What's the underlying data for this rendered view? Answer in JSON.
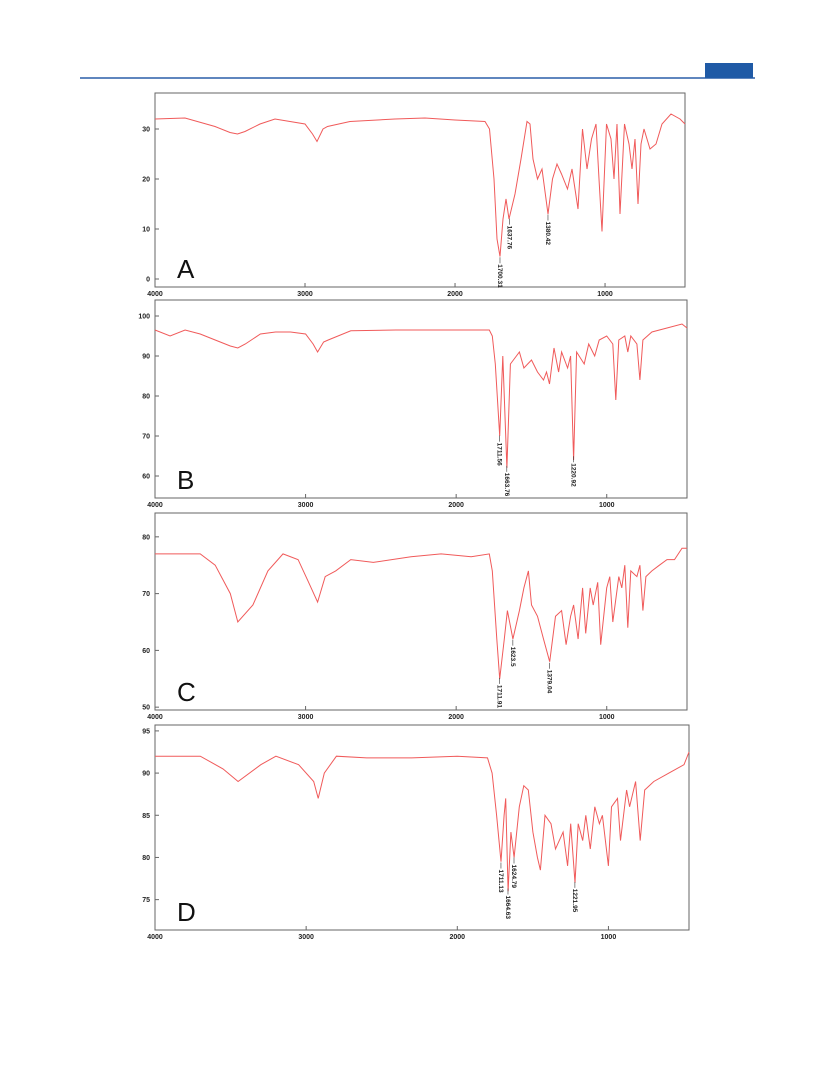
{
  "chart_data": [
    {
      "type": "line",
      "color": "#f05a5a",
      "panel_label": "A",
      "x": [
        4000,
        3800,
        3600,
        3500,
        3450,
        3400,
        3300,
        3200,
        3100,
        3000,
        2950,
        2920,
        2880,
        2850,
        2700,
        2400,
        2200,
        2000,
        1800,
        1770,
        1740,
        1720,
        1700,
        1680,
        1660,
        1640,
        1600,
        1560,
        1520,
        1500,
        1480,
        1450,
        1420,
        1380,
        1350,
        1320,
        1290,
        1250,
        1220,
        1180,
        1150,
        1120,
        1090,
        1060,
        1040,
        1020,
        990,
        960,
        940,
        920,
        900,
        870,
        840,
        820,
        800,
        780,
        760,
        740,
        700,
        660,
        620,
        560,
        500,
        467
      ],
      "values": [
        32,
        32.2,
        30.5,
        29.3,
        29,
        29.5,
        31,
        32,
        31.5,
        31,
        29,
        27.5,
        30,
        30.5,
        31.5,
        32,
        32.2,
        31.8,
        31.5,
        30,
        20,
        8,
        4.5,
        12,
        16,
        12,
        17,
        24,
        31.5,
        31,
        24,
        20,
        22,
        13,
        20,
        23,
        21,
        18,
        22,
        14,
        30,
        22,
        28,
        31,
        20,
        9.5,
        31,
        28,
        20,
        31,
        13,
        31,
        27,
        22,
        28,
        15,
        27,
        30,
        26,
        27,
        31,
        33,
        32,
        31
      ],
      "xlim": [
        4000,
        467
      ],
      "xticks": [
        4000,
        3000,
        2000,
        1000
      ],
      "ylim": [
        -1.6,
        37.2
      ],
      "yticks": [
        0,
        10,
        20,
        30
      ],
      "annotations": [
        {
          "value": 1700.31,
          "label": "1700.31"
        },
        {
          "value": 1637.76,
          "label": "1637.76"
        },
        {
          "value": 1380.42,
          "label": "1380.42"
        }
      ]
    },
    {
      "type": "line",
      "color": "#f05a5a",
      "panel_label": "B",
      "x": [
        4000,
        3900,
        3800,
        3700,
        3600,
        3500,
        3450,
        3400,
        3300,
        3200,
        3100,
        3000,
        2950,
        2920,
        2880,
        2850,
        2700,
        2400,
        2000,
        1780,
        1760,
        1740,
        1711,
        1690,
        1663,
        1640,
        1600,
        1580,
        1550,
        1500,
        1460,
        1420,
        1400,
        1380,
        1350,
        1320,
        1300,
        1260,
        1240,
        1220,
        1200,
        1150,
        1120,
        1080,
        1050,
        1000,
        960,
        940,
        920,
        880,
        860,
        840,
        800,
        780,
        760,
        700,
        600,
        500,
        467
      ],
      "values": [
        96.5,
        95,
        96.5,
        95.5,
        94,
        92.5,
        92,
        93,
        95.5,
        96,
        96,
        95.5,
        93,
        91,
        93.5,
        94,
        96.3,
        96.5,
        96.5,
        96.5,
        95,
        88,
        70,
        90,
        62,
        88,
        90,
        91,
        87,
        89,
        86,
        84,
        86,
        83,
        92,
        86,
        91,
        87,
        90,
        64,
        91,
        88,
        93,
        90,
        94,
        95,
        93,
        79,
        94,
        95,
        91,
        95,
        93,
        84,
        94,
        96,
        97,
        98,
        97
      ],
      "xlim": [
        4000,
        467
      ],
      "xticks": [
        4000,
        3000,
        2000,
        1000
      ],
      "ylim": [
        54.5,
        104
      ],
      "yticks": [
        60,
        70,
        80,
        90,
        100
      ],
      "annotations": [
        {
          "value": 1711.56,
          "label": "1711.56"
        },
        {
          "value": 1663.76,
          "label": "1663.76"
        },
        {
          "value": 1220.92,
          "label": "1220.92"
        }
      ]
    },
    {
      "type": "line",
      "color": "#f05a5a",
      "panel_label": "C",
      "x": [
        4000,
        3700,
        3600,
        3500,
        3450,
        3350,
        3250,
        3150,
        3050,
        2980,
        2920,
        2870,
        2800,
        2700,
        2550,
        2300,
        2100,
        1900,
        1780,
        1760,
        1730,
        1711,
        1680,
        1660,
        1623,
        1580,
        1550,
        1520,
        1500,
        1460,
        1420,
        1379,
        1340,
        1300,
        1270,
        1240,
        1220,
        1190,
        1160,
        1140,
        1110,
        1090,
        1060,
        1040,
        1000,
        980,
        960,
        920,
        900,
        880,
        860,
        840,
        800,
        780,
        760,
        740,
        700,
        650,
        600,
        550,
        500,
        467
      ],
      "values": [
        77,
        77,
        75,
        70,
        65,
        68,
        74,
        77,
        76,
        72,
        68.5,
        73,
        74,
        76,
        75.5,
        76.5,
        77,
        76.5,
        77,
        74,
        62,
        55,
        62,
        67,
        62,
        67,
        71,
        74,
        68,
        66,
        62,
        58,
        66,
        67,
        61,
        66,
        68,
        62,
        71,
        63,
        71,
        68,
        72,
        61,
        71,
        73,
        65,
        73,
        71,
        75,
        64,
        74,
        73,
        75,
        67,
        73,
        74,
        75,
        76,
        76,
        78,
        78
      ],
      "xlim": [
        4000,
        467
      ],
      "xticks": [
        4000,
        3000,
        2000,
        1000
      ],
      "ylim": [
        49.5,
        84.2
      ],
      "yticks": [
        50,
        60,
        70,
        80
      ],
      "annotations": [
        {
          "value": 1711.91,
          "label": "1711.91"
        },
        {
          "value": 1623.5,
          "label": "1623.5"
        },
        {
          "value": 1379.04,
          "label": "1379.04"
        }
      ]
    },
    {
      "type": "line",
      "color": "#f05a5a",
      "panel_label": "D",
      "x": [
        4000,
        3700,
        3550,
        3450,
        3300,
        3200,
        3050,
        2950,
        2920,
        2880,
        2800,
        2600,
        2300,
        2000,
        1800,
        1770,
        1740,
        1711,
        1690,
        1680,
        1664,
        1645,
        1624,
        1590,
        1560,
        1530,
        1500,
        1470,
        1450,
        1420,
        1380,
        1350,
        1300,
        1270,
        1250,
        1221,
        1200,
        1170,
        1150,
        1120,
        1090,
        1060,
        1040,
        1000,
        980,
        940,
        920,
        880,
        860,
        820,
        790,
        760,
        700,
        600,
        500,
        467
      ],
      "values": [
        92,
        92,
        90.5,
        89,
        91,
        92,
        91,
        89,
        87,
        90,
        92,
        91.8,
        91.8,
        92,
        91.8,
        90,
        85,
        79.5,
        85,
        87,
        76,
        83,
        80,
        86,
        88.5,
        88,
        83,
        80,
        78.5,
        85,
        84,
        81,
        83,
        79,
        84,
        77,
        84,
        82,
        85,
        81,
        86,
        84,
        85,
        79,
        86,
        87,
        82,
        88,
        86,
        89,
        82,
        88,
        89,
        90,
        91,
        92.5
      ],
      "xlim": [
        4000,
        467
      ],
      "xticks": [
        4000,
        3000,
        2000,
        1000
      ],
      "ylim": [
        71.4,
        95.7
      ],
      "yticks": [
        75,
        80,
        85,
        90,
        95
      ],
      "annotations": [
        {
          "value": 1711.13,
          "label": "1711.13"
        },
        {
          "value": 1664.63,
          "label": "1664.63"
        },
        {
          "value": 1624.79,
          "label": "1624.79"
        },
        {
          "value": 1221.95,
          "label": "1221.95"
        }
      ]
    }
  ]
}
